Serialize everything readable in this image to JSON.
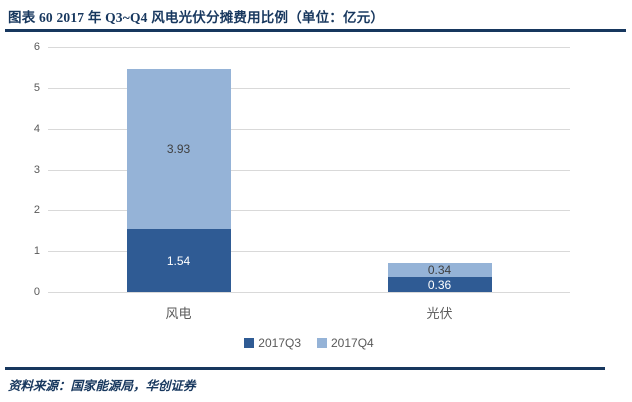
{
  "title": "图表 60   2017 年 Q3~Q4 风电光伏分摊费用比例（单位：亿元）",
  "source": "资料来源：国家能源局，华创证券",
  "colors": {
    "accent_navy": "#17375E",
    "q3_dark_blue": "#2F5B94",
    "q4_light_blue": "#95B3D7",
    "gridline": "#D9D9D9",
    "axis_text": "#595959",
    "label_on_light": "#404040",
    "label_on_dark": "#FFFFFF"
  },
  "chart_data": {
    "type": "bar",
    "stacked": true,
    "title": "2017 年 Q3~Q4 风电光伏分摊费用比例",
    "unit": "亿元",
    "categories": [
      "风电",
      "光伏"
    ],
    "series": [
      {
        "name": "2017Q3",
        "values": [
          1.54,
          0.36
        ],
        "color_key": "q3_dark_blue",
        "label_color_key": "label_on_dark"
      },
      {
        "name": "2017Q4",
        "values": [
          3.93,
          0.34
        ],
        "color_key": "q4_light_blue",
        "label_color_key": "label_on_light"
      }
    ],
    "totals": [
      5.47,
      0.7
    ],
    "ylim": [
      0,
      6
    ],
    "ytick_step": 1,
    "yticks": [
      0,
      1,
      2,
      3,
      4,
      5,
      6
    ],
    "grid": true,
    "legend_position": "bottom-center"
  }
}
